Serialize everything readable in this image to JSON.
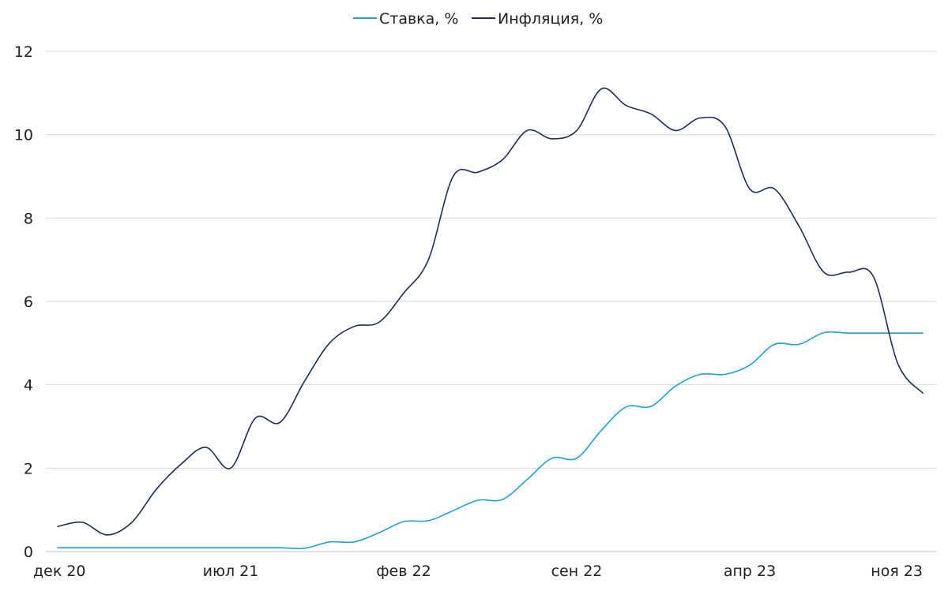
{
  "chart_data": {
    "type": "line",
    "title": "",
    "xlabel": "",
    "ylabel": "",
    "ylim": [
      0,
      12
    ],
    "yticks": [
      "0",
      "2",
      "4",
      "6",
      "8",
      "10",
      "12"
    ],
    "grid": true,
    "legend_position": "top",
    "x": [
      "дек 20",
      "янв 21",
      "фев 21",
      "мар 21",
      "апр 21",
      "май 21",
      "июн 21",
      "июл 21",
      "авг 21",
      "сен 21",
      "окт 21",
      "ноя 21",
      "дек 21",
      "янв 22",
      "фев 22",
      "мар 22",
      "апр 22",
      "май 22",
      "июн 22",
      "июл 22",
      "авг 22",
      "сен 22",
      "окт 22",
      "ноя 22",
      "дек 22",
      "янв 23",
      "фев 23",
      "мар 23",
      "апр 23",
      "май 23",
      "июн 23",
      "июл 23",
      "авг 23",
      "сен 23",
      "окт 23",
      "ноя 23"
    ],
    "x_tick_labels": [
      "дек 20",
      "июл 21",
      "фев 22",
      "сен 22",
      "апр 23",
      "ноя 23"
    ],
    "x_tick_indices": [
      0,
      7,
      14,
      21,
      28,
      35
    ],
    "series": [
      {
        "name": "Ставка, %",
        "color": "#1ea1d4",
        "values": [
          0.09,
          0.09,
          0.09,
          0.09,
          0.09,
          0.09,
          0.09,
          0.09,
          0.09,
          0.09,
          0.08,
          0.23,
          0.23,
          0.45,
          0.72,
          0.74,
          0.98,
          1.23,
          1.25,
          1.73,
          2.24,
          2.24,
          2.91,
          3.47,
          3.48,
          3.97,
          4.25,
          4.25,
          4.47,
          4.97,
          4.97,
          5.25,
          5.24,
          5.24,
          5.24,
          5.24
        ]
      },
      {
        "name": "Инфляция, %",
        "color": "#1f2d4e",
        "values": [
          0.6,
          0.7,
          0.4,
          0.7,
          1.5,
          2.1,
          2.5,
          2.0,
          3.2,
          3.1,
          4.1,
          5.0,
          5.4,
          5.5,
          6.2,
          7.0,
          9.0,
          9.1,
          9.4,
          10.1,
          9.9,
          10.1,
          11.1,
          10.7,
          10.5,
          10.1,
          10.4,
          10.2,
          8.7,
          8.7,
          7.8,
          6.7,
          6.7,
          6.6,
          4.5,
          3.8
        ]
      }
    ]
  }
}
